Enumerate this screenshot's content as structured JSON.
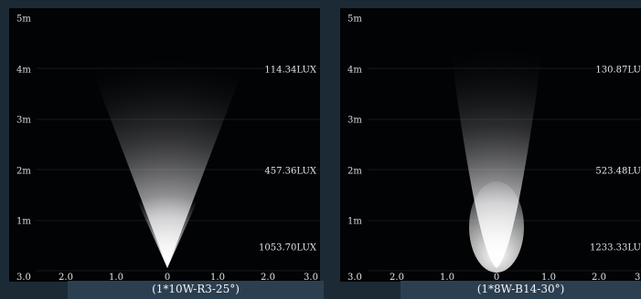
{
  "chart_data": [
    {
      "type": "beam-diagram",
      "caption": "(1*10W-R3-25°)",
      "y_ticks": [
        "5m",
        "4m",
        "3m",
        "2m",
        "1m"
      ],
      "x_ticks": [
        "3.0",
        "2.0",
        "1.0",
        "0",
        "1.0",
        "2.0",
        "3.0"
      ],
      "illuminance": [
        {
          "distance_m": 4,
          "label": "114.34LUX"
        },
        {
          "distance_m": 2,
          "label": "457.36LUX"
        },
        {
          "distance_m": 1,
          "label": "1053.70LUX"
        }
      ]
    },
    {
      "type": "beam-diagram",
      "caption": "(1*8W-B14-30°)",
      "y_ticks": [
        "5m",
        "4m",
        "3m",
        "2m",
        "1m"
      ],
      "x_ticks": [
        "3.0",
        "2.0",
        "1.0",
        "0",
        "1.0",
        "2.0",
        "3.0"
      ],
      "illuminance": [
        {
          "distance_m": 4,
          "label": "130.87LUX"
        },
        {
          "distance_m": 2,
          "label": "523.48LUX"
        },
        {
          "distance_m": 1,
          "label": "1233.33LUX"
        }
      ]
    }
  ]
}
